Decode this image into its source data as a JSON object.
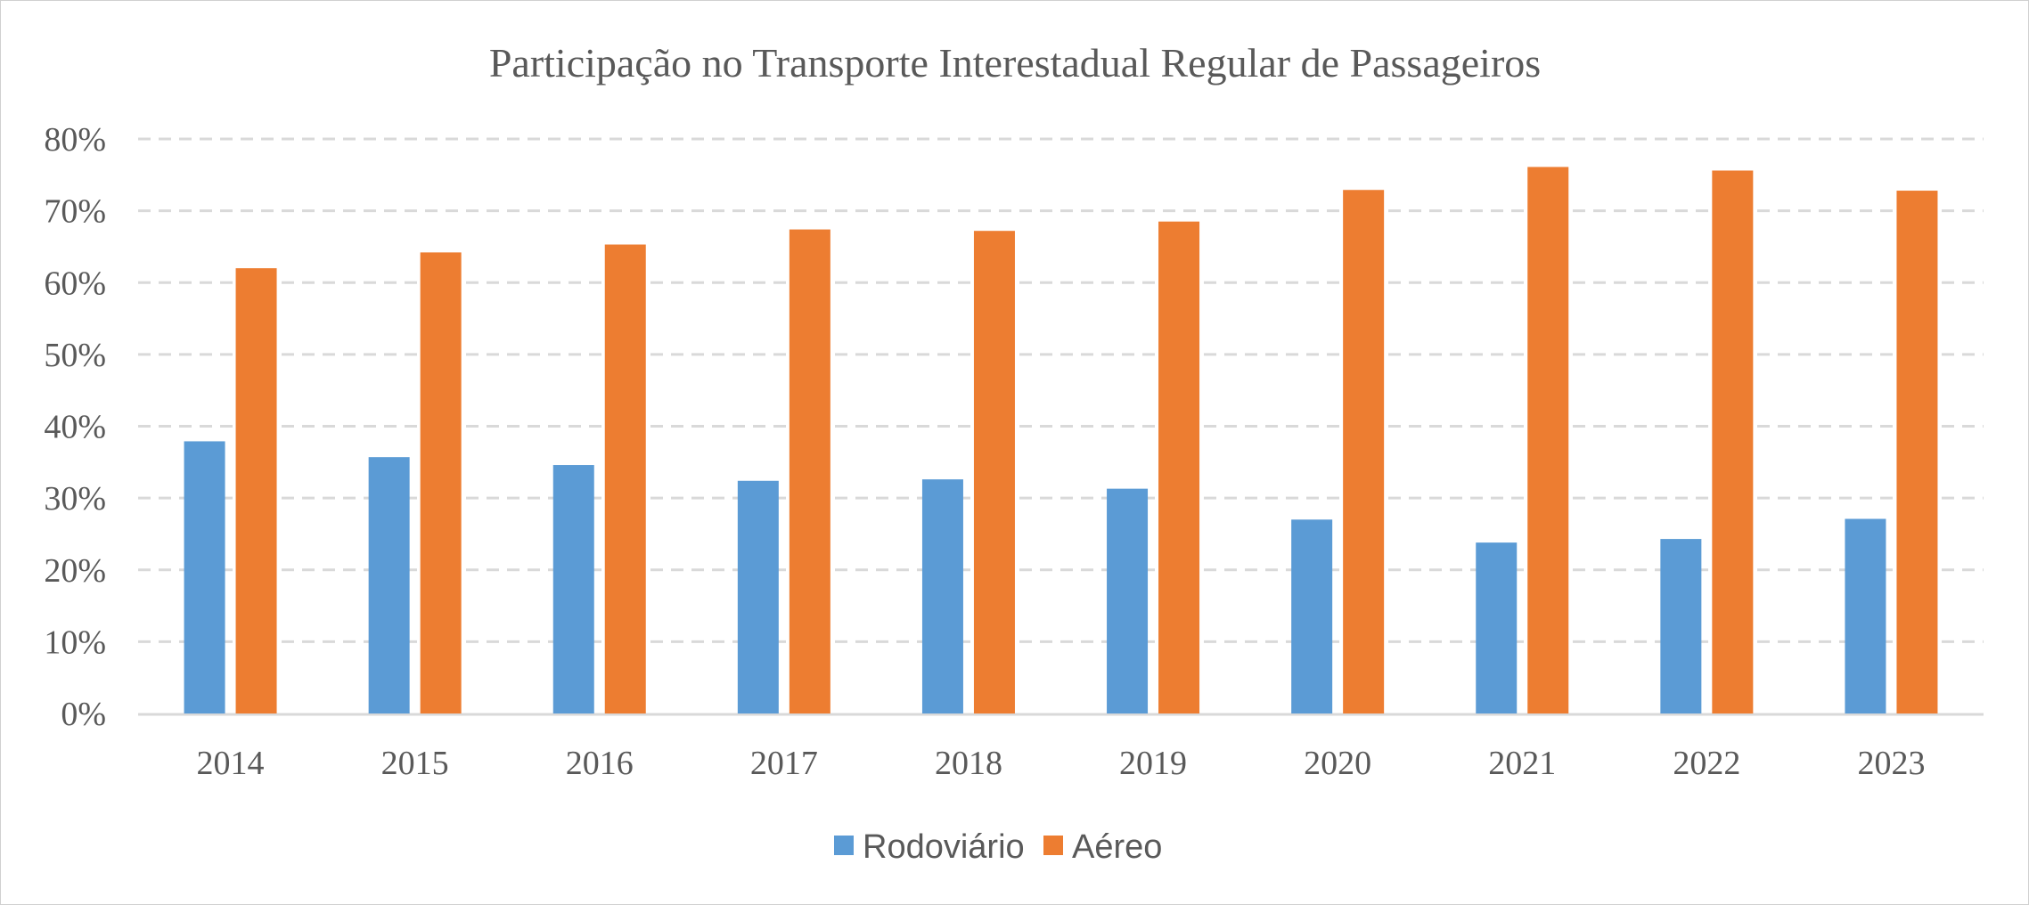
{
  "chart_data": {
    "type": "bar",
    "title": "Participação no Transporte Interestadual Regular de Passageiros",
    "xlabel": "",
    "ylabel": "",
    "categories": [
      "2014",
      "2015",
      "2016",
      "2017",
      "2018",
      "2019",
      "2020",
      "2021",
      "2022",
      "2023"
    ],
    "series": [
      {
        "name": "Rodoviário",
        "color": "#5B9BD5",
        "values": [
          37.9,
          35.7,
          34.6,
          32.4,
          32.6,
          31.3,
          27.0,
          23.8,
          24.3,
          27.1
        ]
      },
      {
        "name": "Aéreo",
        "color": "#ED7D31",
        "values": [
          62.0,
          64.2,
          65.3,
          67.4,
          67.2,
          68.5,
          72.9,
          76.1,
          75.6,
          72.8
        ]
      }
    ],
    "ylim": [
      0,
      80
    ],
    "yticks": [
      0,
      10,
      20,
      30,
      40,
      50,
      60,
      70,
      80
    ],
    "ytick_labels": [
      "0%",
      "10%",
      "20%",
      "30%",
      "40%",
      "50%",
      "60%",
      "70%",
      "80%"
    ],
    "grid": "horizontal dashed",
    "legend": "bottom"
  }
}
